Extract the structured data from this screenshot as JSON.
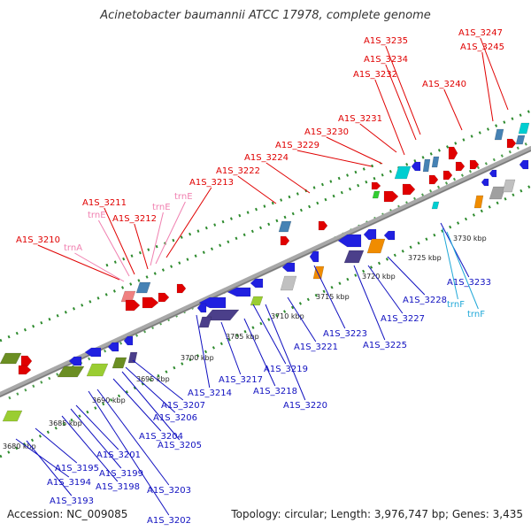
{
  "title": "Acinetobacter baumannii ATCC 17978, complete genome",
  "accession": "Accession: NC_009085",
  "summary": "Topology: circular; Length: 3,976,747 bp; Genes: 3,435",
  "colors": {
    "forward_label": "#e00000",
    "reverse_label": "#1010c0",
    "rna_forward_label": "#f080b0",
    "rna_reverse_label": "#20a8d8",
    "backbone": "#a8a8a8",
    "tick": "#2e8b2e"
  },
  "scale_labels": [
    "3680 kbp",
    "3685 kbp",
    "3690 kbp",
    "3695 kbp",
    "3700 kbp",
    "3705 kbp",
    "3710 kbp",
    "3715 kbp",
    "3720 kbp",
    "3725 kbp",
    "3730 kbp"
  ],
  "forward_labels": [
    "A1S_3210",
    "trnA",
    "A1S_3211",
    "trnE",
    "A1S_3212",
    "trnE",
    "trnE",
    "A1S_3213",
    "A1S_3222",
    "A1S_3224",
    "A1S_3229",
    "A1S_3230",
    "A1S_3231",
    "A1S_3232",
    "A1S_3234",
    "A1S_3235",
    "A1S_3240",
    "A1S_3245",
    "A1S_3247"
  ],
  "reverse_labels": [
    "A1S_3193",
    "A1S_3194",
    "A1S_3195",
    "A1S_3198",
    "A1S_3199",
    "A1S_3201",
    "A1S_3202",
    "A1S_3203",
    "A1S_3204",
    "A1S_3205",
    "A1S_3206",
    "A1S_3207",
    "A1S_3214",
    "A1S_3217",
    "A1S_3218",
    "A1S_3219",
    "A1S_3220",
    "A1S_3221",
    "A1S_3223",
    "A1S_3225",
    "A1S_3227",
    "A1S_3228",
    "A1S_3233",
    "trnF",
    "trnF"
  ]
}
